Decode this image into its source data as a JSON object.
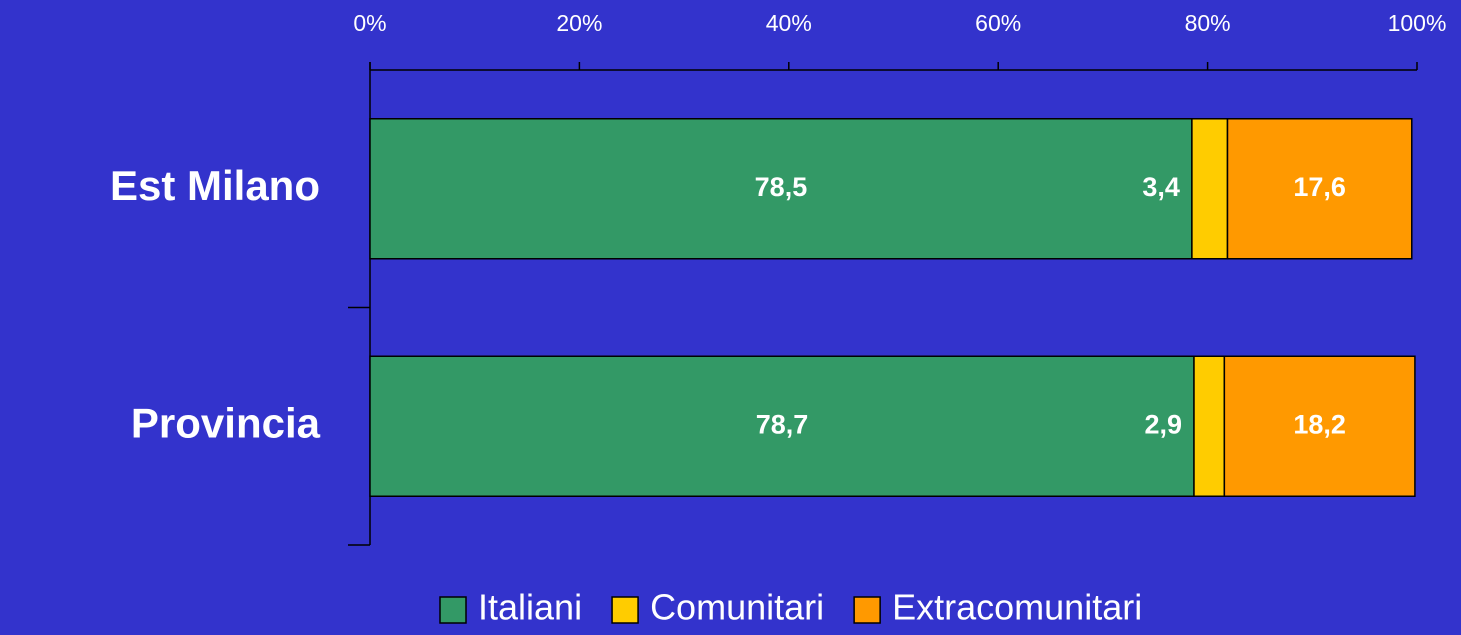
{
  "chart_data": {
    "type": "stacked-bar-horizontal",
    "categories": [
      "Est Milano",
      "Provincia"
    ],
    "series": [
      {
        "name": "Italiani",
        "color": "#339966",
        "values": [
          78.5,
          78.7
        ],
        "value_labels": [
          "78,5",
          "78,7"
        ]
      },
      {
        "name": "Comunitari",
        "color": "#ffcc00",
        "values": [
          3.4,
          2.9
        ],
        "value_labels": [
          "3,4",
          "2,9"
        ]
      },
      {
        "name": "Extracomunitari",
        "color": "#ff9900",
        "values": [
          17.6,
          18.2
        ],
        "value_labels": [
          "17,6",
          "18,2"
        ]
      }
    ],
    "xlim": [
      0,
      100
    ],
    "xticks": [
      {
        "value": 0,
        "label": "0%"
      },
      {
        "value": 20,
        "label": "20%"
      },
      {
        "value": 40,
        "label": "40%"
      },
      {
        "value": 60,
        "label": "60%"
      },
      {
        "value": 80,
        "label": "80%"
      },
      {
        "value": 100,
        "label": "100%"
      }
    ],
    "legend": "bottom"
  }
}
